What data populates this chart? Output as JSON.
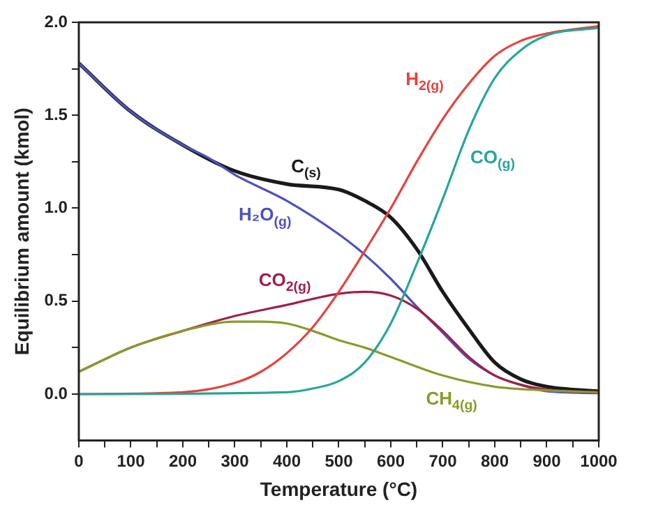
{
  "chart_data": {
    "type": "line",
    "xlabel": "Temperature (°C)",
    "ylabel": "Equilibrium amount (kmol)",
    "xlim": [
      0,
      1000
    ],
    "xticks": [
      0,
      {
        "value": 50,
        "label": null
      },
      100,
      {
        "value": 150,
        "label": null
      },
      200,
      {
        "value": 250,
        "label": null
      },
      300,
      {
        "value": 350,
        "label": null
      },
      400,
      {
        "value": 450,
        "label": null
      },
      500,
      {
        "value": 550,
        "label": null
      },
      600,
      {
        "value": 650,
        "label": null
      },
      700,
      {
        "value": 750,
        "label": null
      },
      800,
      {
        "value": 850,
        "label": null
      },
      900,
      {
        "value": 950,
        "label": null
      },
      1000
    ],
    "ylim": [
      -0.25,
      2.0
    ],
    "yticks": [
      {
        "value": 0,
        "label": "0.0"
      },
      {
        "value": 0.25,
        "label": null
      },
      0.5,
      {
        "value": 0.75,
        "label": null
      },
      {
        "value": 1,
        "label": "1.0"
      },
      {
        "value": 1.25,
        "label": null
      },
      1.5,
      {
        "value": 1.75,
        "label": null
      },
      {
        "value": 2,
        "label": "2.0"
      }
    ],
    "grid": false,
    "legend": false,
    "marker": "none",
    "line_style": "solid",
    "series": [
      {
        "name": "C$_{(s)}$",
        "color": "#1a1a1a",
        "x": [
          0,
          100,
          200,
          300,
          400,
          500,
          550,
          600,
          650,
          700,
          750,
          800,
          850,
          900,
          1000
        ],
        "values": [
          1.78,
          1.52,
          1.34,
          1.2,
          1.13,
          1.1,
          1.04,
          0.95,
          0.78,
          0.55,
          0.35,
          0.17,
          0.08,
          0.04,
          0.015
        ]
      },
      {
        "name": "H₂O$_{(g)}$",
        "color": "#5050c0",
        "x": [
          0,
          100,
          200,
          250,
          300,
          400,
          500,
          550,
          600,
          650,
          700,
          750,
          800,
          850,
          900,
          1000
        ],
        "values": [
          1.78,
          1.52,
          1.34,
          1.27,
          1.18,
          1.04,
          0.86,
          0.75,
          0.62,
          0.47,
          0.33,
          0.19,
          0.1,
          0.05,
          0.015,
          0.005
        ]
      },
      {
        "name": "CO$_{2(g)}$",
        "color": "#a0204a",
        "x": [
          0,
          100,
          200,
          300,
          400,
          500,
          550,
          600,
          650,
          700,
          750,
          800,
          850,
          900,
          1000
        ],
        "values": [
          0.12,
          0.25,
          0.34,
          0.42,
          0.48,
          0.54,
          0.55,
          0.53,
          0.46,
          0.34,
          0.2,
          0.1,
          0.05,
          0.025,
          0.01
        ]
      },
      {
        "name": "CH$_{4(g)}$",
        "color": "#8a9a2a",
        "x": [
          0,
          100,
          200,
          300,
          350,
          400,
          450,
          500,
          550,
          600,
          700,
          800,
          900,
          1000
        ],
        "values": [
          0.12,
          0.25,
          0.34,
          0.39,
          0.39,
          0.38,
          0.34,
          0.29,
          0.25,
          0.2,
          0.1,
          0.04,
          0.02,
          0.01
        ]
      },
      {
        "name": "H$_{2(g)}$",
        "color": "#e8413c",
        "x": [
          0,
          200,
          300,
          350,
          400,
          450,
          500,
          550,
          600,
          650,
          700,
          750,
          800,
          850,
          900,
          1000
        ],
        "values": [
          0,
          0.01,
          0.06,
          0.12,
          0.22,
          0.36,
          0.55,
          0.77,
          1.0,
          1.25,
          1.48,
          1.67,
          1.82,
          1.9,
          1.94,
          1.98
        ]
      },
      {
        "name": "CO$_{(g)}$",
        "color": "#26a69a",
        "x": [
          0,
          400,
          450,
          500,
          550,
          600,
          650,
          700,
          750,
          800,
          850,
          900,
          1000
        ],
        "values": [
          0,
          0.01,
          0.03,
          0.07,
          0.17,
          0.38,
          0.7,
          1.05,
          1.42,
          1.7,
          1.85,
          1.93,
          1.97
        ]
      }
    ]
  }
}
